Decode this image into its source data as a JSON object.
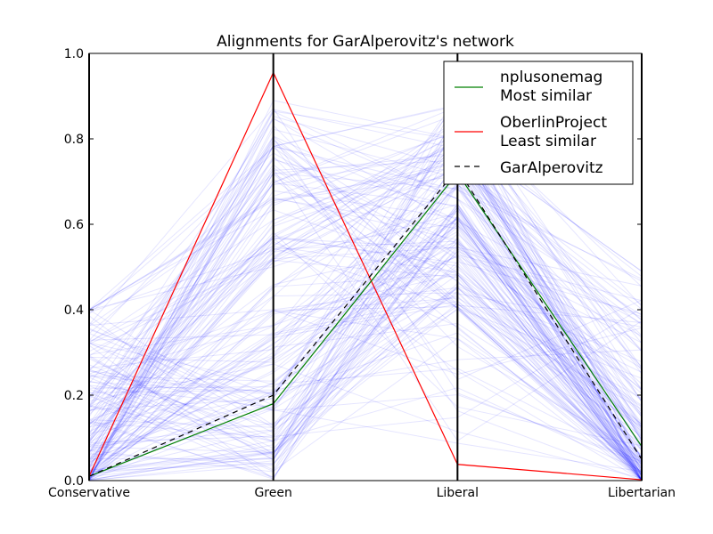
{
  "chart_data": {
    "type": "line",
    "title": "Alignments for GarAlperovitz's network",
    "categories": [
      "Conservative",
      "Green",
      "Liberal",
      "Libertarian"
    ],
    "ylim": [
      0,
      1
    ],
    "yticks": [
      "0.0",
      "0.2",
      "0.4",
      "0.6",
      "0.8",
      "1.0"
    ],
    "grid": false,
    "legend_position": "top-right",
    "colors": {
      "background_lines": "#0000ff",
      "most_similar": "#008000",
      "least_similar": "#ff0000",
      "target": "#000000"
    },
    "series": [
      {
        "name": "nplusonemag\nMost similar",
        "style": "green-solid",
        "values": [
          0.01,
          0.18,
          0.72,
          0.08
        ]
      },
      {
        "name": "OberlinProject\nLeast similar",
        "style": "red-solid",
        "values": [
          0.01,
          0.955,
          0.038,
          0.002
        ]
      },
      {
        "name": "GarAlperovitz",
        "style": "black-dashed",
        "values": [
          0.01,
          0.2,
          0.73,
          0.05
        ]
      }
    ],
    "background_lines_count": 180
  }
}
